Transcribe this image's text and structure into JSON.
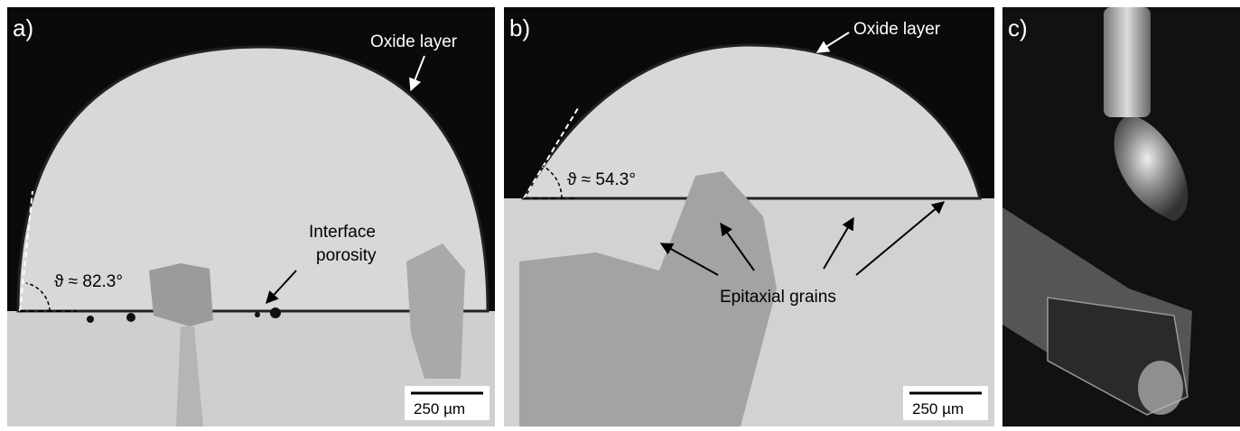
{
  "panels": [
    {
      "label": "a)",
      "oxide_label": "Oxide layer",
      "porosity_label": [
        "Interface",
        "porosity"
      ],
      "angle_label": "ϑ ≈ 82.3°",
      "scale_bar": "250 µm"
    },
    {
      "label": "b)",
      "oxide_label": "Oxide layer",
      "angle_label": "ϑ ≈ 54.3°",
      "grains_label": "Epitaxial grains",
      "scale_bar": "250 µm"
    },
    {
      "label": "c)"
    }
  ]
}
